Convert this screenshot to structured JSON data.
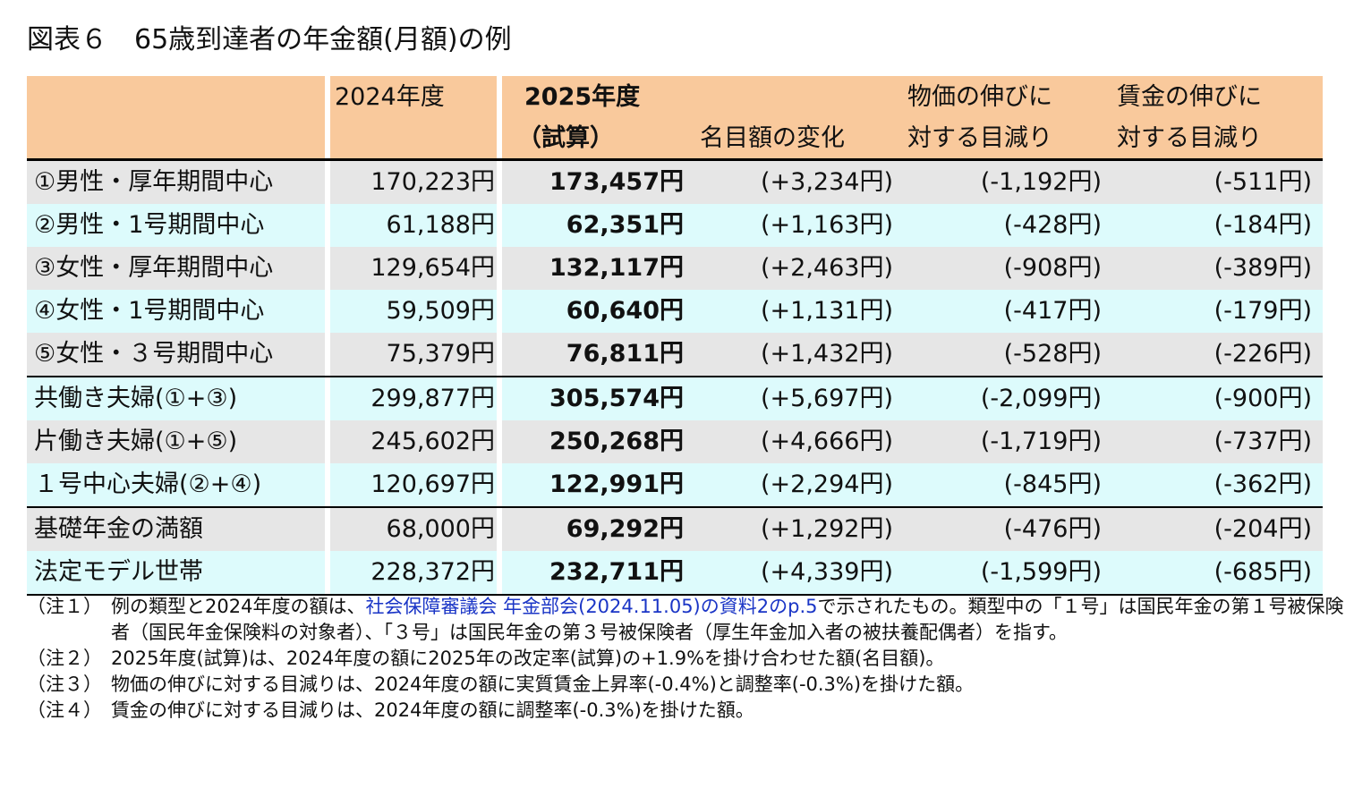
{
  "title": "図表６　65歳到達者の年金額(月額)の例",
  "header": {
    "col1": "2024年度",
    "col2_line1": "2025年度",
    "col2_line2": "（試算）",
    "col3": "名目額の変化",
    "col4_line1": "物価の伸びに",
    "col4_line2": "対する目減り",
    "col5_line1": "賃金の伸びに",
    "col5_line2": "対する目減り"
  },
  "rows": [
    {
      "label": "①男性・厚年期間中心",
      "v2024": "170,223円",
      "v2025": "173,457円",
      "change": "(+3,234円)",
      "price": "(-1,192円)",
      "wage": "(-511円)"
    },
    {
      "label": "②男性・1号期間中心",
      "v2024": "61,188円",
      "v2025": "62,351円",
      "change": "(+1,163円)",
      "price": "(-428円)",
      "wage": "(-184円)"
    },
    {
      "label": "③女性・厚年期間中心",
      "v2024": "129,654円",
      "v2025": "132,117円",
      "change": "(+2,463円)",
      "price": "(-908円)",
      "wage": "(-389円)"
    },
    {
      "label": "④女性・1号期間中心",
      "v2024": "59,509円",
      "v2025": "60,640円",
      "change": "(+1,131円)",
      "price": "(-417円)",
      "wage": "(-179円)"
    },
    {
      "label": "⑤女性・３号期間中心",
      "v2024": "75,379円",
      "v2025": "76,811円",
      "change": "(+1,432円)",
      "price": "(-528円)",
      "wage": "(-226円)"
    },
    {
      "label": "共働き夫婦(①+③)",
      "v2024": "299,877円",
      "v2025": "305,574円",
      "change": "(+5,697円)",
      "price": "(-2,099円)",
      "wage": "(-900円)"
    },
    {
      "label": "片働き夫婦(①+⑤)",
      "v2024": "245,602円",
      "v2025": "250,268円",
      "change": "(+4,666円)",
      "price": "(-1,719円)",
      "wage": "(-737円)"
    },
    {
      "label": "１号中心夫婦(②+④)",
      "v2024": "120,697円",
      "v2025": "122,991円",
      "change": "(+2,294円)",
      "price": "(-845円)",
      "wage": "(-362円)"
    },
    {
      "label": "基礎年金の満額",
      "v2024": "68,000円",
      "v2025": "69,292円",
      "change": "(+1,292円)",
      "price": "(-476円)",
      "wage": "(-204円)"
    },
    {
      "label": "法定モデル世帯",
      "v2024": "228,372円",
      "v2025": "232,711円",
      "change": "(+4,339円)",
      "price": "(-1,599円)",
      "wage": "(-685円)"
    }
  ],
  "notes": {
    "n1_label": "（注１）",
    "n1_pre": "例の類型と2024年度の額は、",
    "n1_link": "社会保障審議会 年金部会(2024.11.05)の資料2のp.5",
    "n1_post": "で示されたもの。類型中の「１号」は国民年金の第１号被保険者（国民年金保険料の対象者）、「３号」は国民年金の第３号被保険者（厚生年金加入者の被扶養配偶者）を指す。",
    "n2_label": "（注２）",
    "n2_text": "2025年度(試算)は、2024年度の額に2025年の改定率(試算)の+1.9%を掛け合わせた額(名目額)。",
    "n3_label": "（注３）",
    "n3_text": "物価の伸びに対する目減りは、2024年度の額に実質賃金上昇率(-0.4%)と調整率(-0.3%)を掛けた額。",
    "n4_label": "（注４）",
    "n4_text": "賃金の伸びに対する目減りは、2024年度の額に調整率(-0.3%)を掛けた額。"
  },
  "colors": {
    "header_bg": "#f9c99c",
    "gray_row": "#e6e6e6",
    "blue_row": "#ddfbfc",
    "link": "#1a35c6"
  }
}
